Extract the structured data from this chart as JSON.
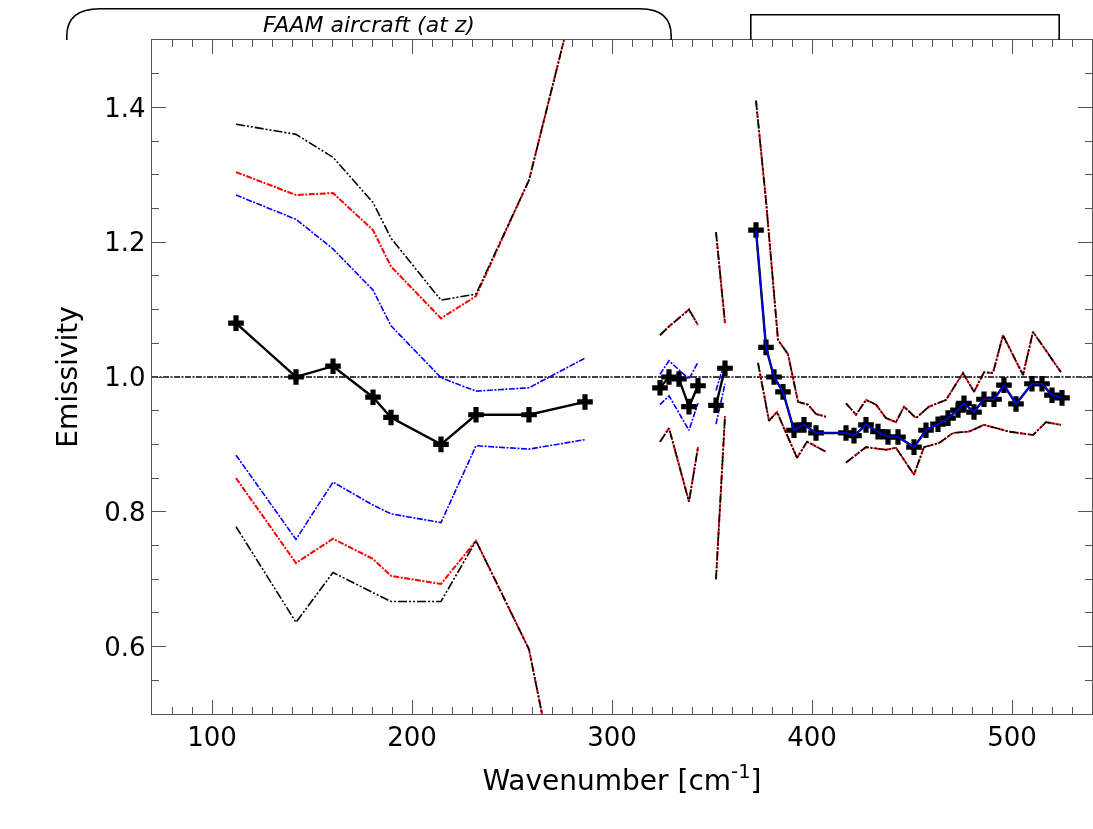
{
  "chart_data": {
    "type": "line",
    "xlabel": "Wavenumber [cm$^{-1}$]",
    "ylabel": "Emissivity",
    "annotations": [
      "FAAM aircraft (at z)"
    ],
    "xlim": [
      70,
      540
    ],
    "ylim": [
      0.5,
      1.5
    ],
    "xticks": [
      {
        "value": 80,
        "label": null
      },
      {
        "value": 90,
        "label": null
      },
      100,
      {
        "value": 110,
        "label": null
      },
      {
        "value": 120,
        "label": null
      },
      {
        "value": 130,
        "label": null
      },
      {
        "value": 140,
        "label": null
      },
      {
        "value": 150,
        "label": null
      },
      {
        "value": 160,
        "label": null
      },
      {
        "value": 170,
        "label": null
      },
      {
        "value": 180,
        "label": null
      },
      {
        "value": 190,
        "label": null
      },
      200,
      {
        "value": 210,
        "label": null
      },
      {
        "value": 220,
        "label": null
      },
      {
        "value": 230,
        "label": null
      },
      {
        "value": 240,
        "label": null
      },
      {
        "value": 250,
        "label": null
      },
      {
        "value": 260,
        "label": null
      },
      {
        "value": 270,
        "label": null
      },
      {
        "value": 280,
        "label": null
      },
      {
        "value": 290,
        "label": null
      },
      300,
      {
        "value": 310,
        "label": null
      },
      {
        "value": 320,
        "label": null
      },
      {
        "value": 330,
        "label": null
      },
      {
        "value": 340,
        "label": null
      },
      {
        "value": 350,
        "label": null
      },
      {
        "value": 360,
        "label": null
      },
      {
        "value": 370,
        "label": null
      },
      {
        "value": 380,
        "label": null
      },
      {
        "value": 390,
        "label": null
      },
      400,
      {
        "value": 410,
        "label": null
      },
      {
        "value": 420,
        "label": null
      },
      {
        "value": 430,
        "label": null
      },
      {
        "value": 440,
        "label": null
      },
      {
        "value": 450,
        "label": null
      },
      {
        "value": 460,
        "label": null
      },
      {
        "value": 470,
        "label": null
      },
      {
        "value": 480,
        "label": null
      },
      {
        "value": 490,
        "label": null
      },
      500,
      {
        "value": 510,
        "label": null
      },
      {
        "value": 520,
        "label": null
      },
      {
        "value": 530,
        "label": null
      }
    ],
    "yticks": [
      {
        "value": 0.55,
        "label": null
      },
      0.6,
      {
        "value": 0.65,
        "label": null
      },
      {
        "value": 0.7,
        "label": null
      },
      {
        "value": 0.75,
        "label": null
      },
      0.8,
      {
        "value": 0.85,
        "label": null
      },
      {
        "value": 0.9,
        "label": null
      },
      {
        "value": 0.95,
        "label": null
      },
      {
        "value": 1.0,
        "label": "1.0"
      },
      {
        "value": 1.05,
        "label": null
      },
      {
        "value": 1.1,
        "label": null
      },
      {
        "value": 1.15,
        "label": null
      },
      1.2,
      {
        "value": 1.25,
        "label": null
      },
      {
        "value": 1.3,
        "label": null
      },
      {
        "value": 1.35,
        "label": null
      },
      1.4,
      {
        "value": 1.45,
        "label": null
      }
    ],
    "grid": false,
    "ref_lines": [
      {
        "axis": "y",
        "value": 1.0,
        "color": "#000000",
        "line_style": "dashed"
      }
    ],
    "series": [
      {
        "color": "#ff0000",
        "line_style": "dashed",
        "x": [
          112,
          142,
          160.5,
          180.5,
          189.5,
          214.5,
          232,
          258.5,
          276,
          null,
          324,
          328.5,
          338.5,
          343,
          null,
          352,
          356.5,
          null,
          372,
          377,
          383,
          388,
          393,
          398,
          402,
          407,
          null,
          417,
          422,
          427,
          432,
          437,
          442,
          446,
          452,
          458.5,
          467,
          475.5,
          481,
          486,
          490.5,
          495.5,
          505.5,
          510.5,
          524.5
        ],
        "values": [
          1.304,
          1.27,
          1.273,
          1.218,
          1.164,
          1.087,
          1.12,
          1.292,
          1.5,
          null,
          1.062,
          1.075,
          1.1,
          1.077,
          null,
          1.215,
          1.08,
          null,
          1.41,
          1.262,
          1.055,
          1.034,
          0.963,
          0.959,
          0.945,
          0.941,
          null,
          0.961,
          0.944,
          0.966,
          0.959,
          0.939,
          0.933,
          0.956,
          0.939,
          0.956,
          0.966,
          1.006,
          0.978,
          1.007,
          1.006,
          1.062,
          1.003,
          1.067,
          1.007
        ]
      },
      {
        "color": "#ff0000",
        "line_style": "dashed",
        "x": [
          112,
          142,
          160.5,
          180.5,
          189.5,
          214.5,
          232,
          258.5,
          265,
          null,
          324,
          328.5,
          338.5,
          343,
          null,
          352,
          356.5,
          null,
          373,
          378.5,
          382.5,
          392.5,
          397.5,
          407,
          null,
          417,
          427,
          437,
          442,
          451,
          456,
          463.5,
          470.5,
          478.5,
          486,
          498.5,
          510.5,
          517,
          524.5
        ],
        "values": [
          0.85,
          0.724,
          0.76,
          0.73,
          0.705,
          0.693,
          0.757,
          0.596,
          0.5,
          null,
          0.904,
          0.924,
          0.815,
          0.896,
          null,
          0.7,
          0.942,
          null,
          1.021,
          0.935,
          0.948,
          0.88,
          0.904,
          0.889,
          null,
          0.873,
          0.896,
          0.892,
          0.895,
          0.855,
          0.896,
          0.902,
          0.917,
          0.919,
          0.929,
          0.919,
          0.914,
          0.933,
          0.929
        ]
      },
      {
        "color": "#0000ff",
        "line_style": "dashed",
        "x": [
          112,
          142,
          160.5,
          180.5,
          189.5,
          214.5,
          232,
          258.5,
          286.5,
          null,
          324,
          328.5,
          338.5,
          343,
          null,
          352,
          356.5
        ],
        "values": [
          1.27,
          1.234,
          1.19,
          1.129,
          1.076,
          0.999,
          0.979,
          0.984,
          1.028,
          null,
          1.004,
          1.024,
          0.997,
          1.022,
          null,
          0.98,
          1.024
        ]
      },
      {
        "color": "#0000ff",
        "line_style": "dashed",
        "x": [
          112,
          142,
          160.5,
          180.5,
          189.5,
          214.5,
          232,
          258.5,
          286.5,
          null,
          324,
          328.5,
          338.5,
          343,
          null,
          352,
          356.5
        ],
        "values": [
          0.884,
          0.759,
          0.844,
          0.81,
          0.797,
          0.784,
          0.898,
          0.893,
          0.907,
          null,
          0.959,
          0.972,
          0.921,
          0.961,
          null,
          0.93,
          0.99
        ]
      },
      {
        "color": "#000000",
        "line_style": "dotted",
        "x": [
          112,
          142,
          160.5,
          180.5,
          189.5,
          214.5,
          232,
          258.5,
          276,
          null,
          324,
          328.5,
          338.5,
          343,
          null,
          352,
          356.5,
          null,
          372,
          377,
          383,
          388,
          393,
          398,
          402,
          407,
          null,
          417,
          422,
          427,
          432,
          437,
          442,
          446,
          452,
          458.5,
          467,
          475.5,
          481,
          486,
          490.5,
          495.5,
          505.5,
          510.5,
          524.5
        ],
        "values": [
          1.375,
          1.36,
          1.326,
          1.259,
          1.206,
          1.114,
          1.123,
          1.292,
          1.5,
          null,
          1.062,
          1.075,
          1.1,
          1.077,
          null,
          1.215,
          1.08,
          null,
          1.41,
          1.262,
          1.055,
          1.034,
          0.963,
          0.959,
          0.945,
          0.941,
          null,
          0.961,
          0.944,
          0.966,
          0.959,
          0.939,
          0.933,
          0.956,
          0.939,
          0.956,
          0.966,
          1.006,
          0.978,
          1.007,
          1.006,
          1.062,
          1.003,
          1.067,
          1.007
        ]
      },
      {
        "color": "#000000",
        "line_style": "dotted",
        "x": [
          112,
          142,
          160.5,
          180.5,
          189.5,
          214.5,
          232,
          258.5,
          265,
          null,
          324,
          328.5,
          338.5,
          343,
          null,
          352,
          356.5,
          null,
          373,
          378.5,
          382.5,
          392.5,
          397.5,
          407,
          null,
          417,
          427,
          437,
          442,
          451,
          456,
          463.5,
          470.5,
          478.5,
          486,
          498.5,
          510.5,
          517,
          524.5
        ],
        "values": [
          0.778,
          0.636,
          0.71,
          0.68,
          0.667,
          0.667,
          0.757,
          0.596,
          0.5,
          null,
          0.904,
          0.924,
          0.815,
          0.896,
          null,
          0.7,
          0.942,
          null,
          1.021,
          0.935,
          0.948,
          0.88,
          0.904,
          0.889,
          null,
          0.873,
          0.896,
          0.892,
          0.895,
          0.855,
          0.896,
          0.902,
          0.917,
          0.919,
          0.929,
          0.919,
          0.914,
          0.933,
          0.929
        ]
      },
      {
        "color": "#000000",
        "line_style": "solid",
        "marker": "cross",
        "x": [
          112,
          142,
          160.5,
          180.5,
          189.5,
          214.5,
          232,
          258.5,
          286.5,
          null,
          324,
          328.5,
          333.5,
          338.5,
          343,
          null,
          352,
          356.5,
          null,
          372,
          377,
          381,
          385.5,
          391,
          396,
          402,
          417,
          421,
          427,
          433,
          438,
          443,
          451,
          457,
          463,
          468,
          473,
          476,
          481,
          486,
          491,
          496,
          502,
          510,
          515,
          520,
          525
        ],
        "values": [
          1.08,
          1.0,
          1.016,
          0.97,
          0.94,
          0.9,
          0.944,
          0.944,
          0.963,
          null,
          0.984,
          1.0,
          0.997,
          0.956,
          0.987,
          null,
          0.958,
          1.013,
          null,
          1.218,
          1.044,
          1.0,
          0.978,
          0.921,
          0.929,
          0.917,
          0.917,
          0.913,
          0.929,
          0.919,
          0.911,
          0.911,
          0.896,
          0.921,
          0.93,
          0.939,
          0.951,
          0.961,
          0.948,
          0.967,
          0.967,
          0.988,
          0.96,
          0.99,
          0.99,
          0.973,
          0.969
        ]
      },
      {
        "color": "#0000ff",
        "line_style": "solid",
        "x": [
          372,
          377,
          381,
          385.5,
          391,
          396,
          402,
          417,
          421,
          427,
          433,
          438,
          443,
          451,
          457,
          463,
          468,
          473,
          476,
          481,
          486,
          491,
          496,
          502,
          510,
          515,
          520,
          525
        ],
        "values": [
          1.218,
          1.044,
          1.0,
          0.978,
          0.921,
          0.929,
          0.917,
          0.917,
          0.913,
          0.929,
          0.919,
          0.911,
          0.911,
          0.896,
          0.921,
          0.93,
          0.939,
          0.951,
          0.961,
          0.948,
          0.967,
          0.967,
          0.988,
          0.96,
          0.99,
          0.99,
          0.973,
          0.969
        ]
      }
    ]
  }
}
